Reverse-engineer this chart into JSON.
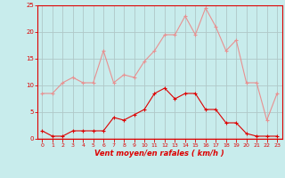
{
  "title": "",
  "xlabel": "Vent moyen/en rafales ( km/h )",
  "background_color": "#c8ecec",
  "grid_color": "#b0c8c8",
  "hours": [
    0,
    1,
    2,
    3,
    4,
    5,
    6,
    7,
    8,
    9,
    10,
    11,
    12,
    13,
    14,
    15,
    16,
    17,
    18,
    19,
    20,
    21,
    22,
    23
  ],
  "wind_avg": [
    1.5,
    0.5,
    0.5,
    1.5,
    1.5,
    1.5,
    1.5,
    4.0,
    3.5,
    4.5,
    5.5,
    8.5,
    9.5,
    7.5,
    8.5,
    8.5,
    5.5,
    5.5,
    3.0,
    3.0,
    1.0,
    0.5,
    0.5,
    0.5
  ],
  "wind_gust": [
    8.5,
    8.5,
    10.5,
    11.5,
    10.5,
    10.5,
    16.5,
    10.5,
    12.0,
    11.5,
    14.5,
    16.5,
    19.5,
    19.5,
    23.0,
    19.5,
    24.5,
    21.0,
    16.5,
    18.5,
    10.5,
    10.5,
    3.5,
    8.5
  ],
  "avg_color": "#dd0000",
  "gust_color": "#e89090",
  "ylim": [
    0,
    25
  ],
  "yticks": [
    0,
    5,
    10,
    15,
    20,
    25
  ],
  "marker_size": 2.0,
  "line_width": 0.8
}
